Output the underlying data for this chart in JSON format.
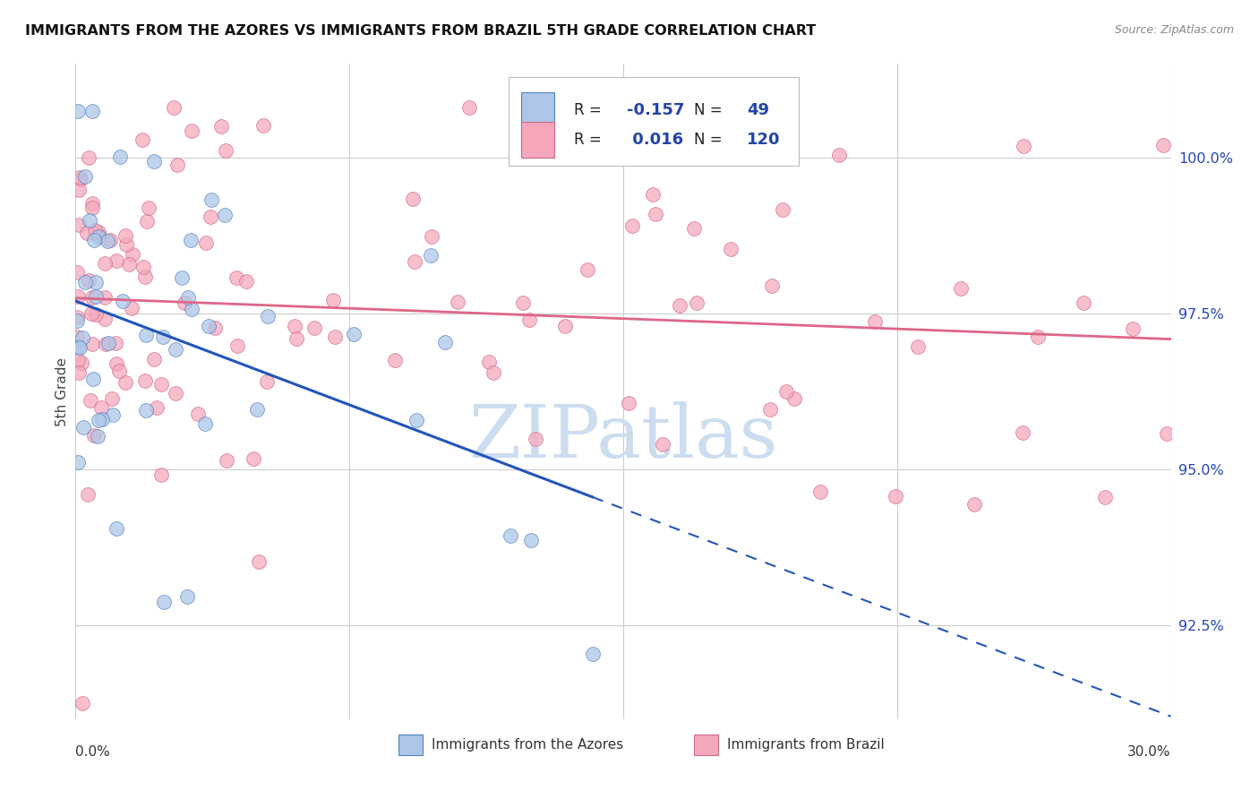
{
  "title": "IMMIGRANTS FROM THE AZORES VS IMMIGRANTS FROM BRAZIL 5TH GRADE CORRELATION CHART",
  "source": "Source: ZipAtlas.com",
  "ylabel": "5th Grade",
  "xlim": [
    0.0,
    30.0
  ],
  "ylim": [
    91.0,
    101.5
  ],
  "yticks": [
    92.5,
    95.0,
    97.5,
    100.0
  ],
  "ytick_labels": [
    "92.5%",
    "95.0%",
    "97.5%",
    "100.0%"
  ],
  "azores_R": -0.157,
  "azores_N": 49,
  "brazil_R": 0.016,
  "brazil_N": 120,
  "azores_color": "#adc6e8",
  "brazil_color": "#f5a8bc",
  "azores_edge_color": "#5080c0",
  "brazil_edge_color": "#d06888",
  "azores_line_color": "#2255bb",
  "brazil_line_color": "#dd6688",
  "watermark": "ZIPatlas",
  "watermark_color": "#ccddf0",
  "legend_R_color": "#2244aa",
  "background": "#ffffff"
}
